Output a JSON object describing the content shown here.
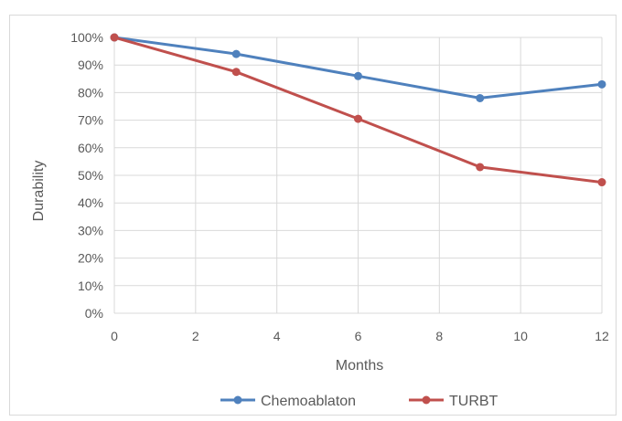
{
  "chart_data": {
    "type": "line",
    "title": "",
    "xlabel": "Months",
    "ylabel": "Durability",
    "xlim": [
      0,
      12
    ],
    "ylim": [
      0,
      100
    ],
    "x_ticks": [
      "0",
      "2",
      "4",
      "6",
      "8",
      "10",
      "12"
    ],
    "y_ticks": [
      "0%",
      "10%",
      "20%",
      "30%",
      "40%",
      "50%",
      "60%",
      "70%",
      "80%",
      "90%",
      "100%"
    ],
    "grid": true,
    "legend_position": "bottom",
    "series": [
      {
        "name": "Chemoablaton",
        "color": "#4f81bd",
        "x": [
          0,
          3,
          6,
          9,
          12
        ],
        "y": [
          100,
          94,
          86,
          78,
          83
        ]
      },
      {
        "name": "TURBT",
        "color": "#c0504d",
        "x": [
          0,
          3,
          6,
          9,
          12
        ],
        "y": [
          100,
          87.5,
          70.5,
          53,
          47.5
        ]
      }
    ]
  }
}
